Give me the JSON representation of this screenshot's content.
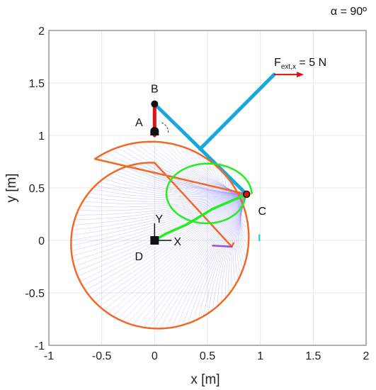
{
  "chart_data": {
    "type": "line",
    "title": "",
    "xlabel": "x [m]",
    "ylabel": "y [m]",
    "xlim": [
      -1,
      2
    ],
    "ylim": [
      -1,
      2
    ],
    "xticks": [
      "-1",
      "-0.5",
      "0",
      "0.5",
      "1",
      "1.5",
      "2"
    ],
    "yticks": [
      "-1",
      "-0.5",
      "0",
      "0.5",
      "1",
      "1.5",
      "2"
    ],
    "grid": true,
    "angle_annotation": {
      "text": "α = 90º"
    },
    "force_annotation": {
      "main": "F",
      "sub": "ext,x",
      "suffix": " = 5 N",
      "x": 1.13,
      "y": 1.58
    },
    "points": [
      {
        "label": "A",
        "x": 0.0,
        "y": 1.0
      },
      {
        "label": "B",
        "x": 0.0,
        "y": 1.3
      },
      {
        "label": "C",
        "x": 0.87,
        "y": 0.44
      },
      {
        "label": "D",
        "x": 0.0,
        "y": 0.0
      }
    ],
    "frame_labels": {
      "x_axis": "X",
      "y_axis": "Y"
    },
    "series": [
      {
        "type": "link-blue",
        "color": "#1aa7dc",
        "points": [
          [
            0.0,
            1.3
          ],
          [
            0.87,
            0.44
          ]
        ]
      },
      {
        "type": "link-blue",
        "color": "#1aa7dc",
        "points": [
          [
            0.43,
            0.87
          ],
          [
            1.13,
            1.58
          ]
        ]
      },
      {
        "type": "link-red",
        "color": "#dd1111",
        "points": [
          [
            0.0,
            1.0
          ],
          [
            0.0,
            1.3
          ]
        ]
      },
      {
        "type": "orange-spiral",
        "color": "#f06a26"
      },
      {
        "type": "green-curve",
        "color": "#22ee22"
      },
      {
        "type": "purple-segment",
        "color": "#9b4fd6",
        "points": [
          [
            0.55,
            -0.05
          ],
          [
            0.73,
            -0.06
          ]
        ]
      },
      {
        "type": "cyan-segment",
        "color": "#22e0e0",
        "points": [
          [
            0.99,
            0.05
          ],
          [
            0.99,
            0.0
          ]
        ]
      }
    ],
    "colors": {
      "orange": "#f06a26",
      "blue": "#1aa7dc",
      "red": "#dd1111",
      "green": "#22ee22",
      "purple": "#9b4fd6",
      "cyan": "#22e0e0",
      "fan": "#7c7cf0",
      "grid": "#e6e6e6"
    }
  }
}
